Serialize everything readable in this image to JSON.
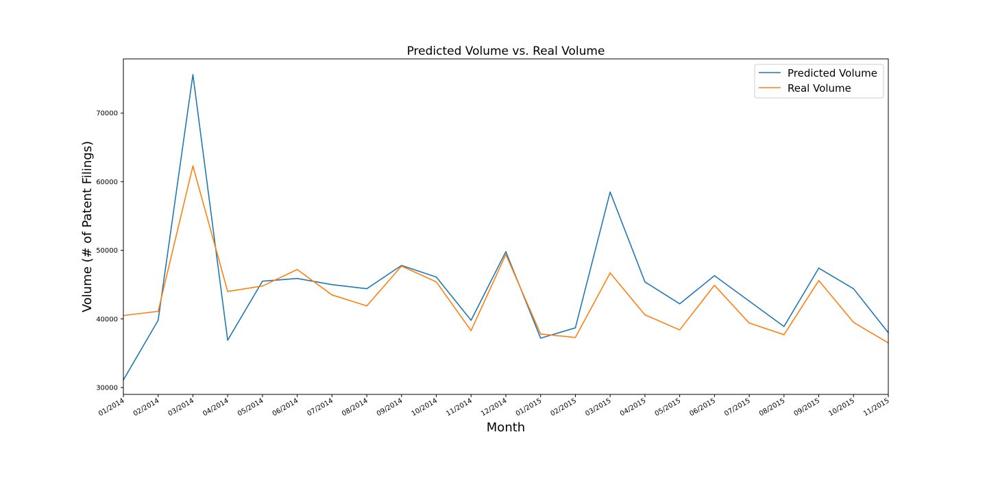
{
  "chart_data": {
    "type": "line",
    "title": "Predicted Volume vs. Real Volume",
    "xlabel": "Month",
    "ylabel": "Volume (# of Patent Filings)",
    "categories": [
      "01/2014",
      "02/2014",
      "03/2014",
      "04/2014",
      "05/2014",
      "06/2014",
      "07/2014",
      "08/2014",
      "09/2014",
      "10/2014",
      "11/2014",
      "12/2014",
      "01/2015",
      "02/2015",
      "03/2015",
      "04/2015",
      "05/2015",
      "06/2015",
      "07/2015",
      "08/2015",
      "09/2015",
      "10/2015",
      "11/2015"
    ],
    "ylim": [
      29000,
      77900
    ],
    "yticks": [
      30000,
      40000,
      50000,
      60000,
      70000
    ],
    "ytick_labels": [
      "30000",
      "40000",
      "50000",
      "60000",
      "70000"
    ],
    "series": [
      {
        "name": "Predicted Volume",
        "color": "#1f77b4",
        "values": [
          31100,
          39800,
          75600,
          36900,
          45500,
          45900,
          45000,
          44400,
          47800,
          46100,
          39800,
          49800,
          37200,
          38700,
          58500,
          45400,
          42200,
          46300,
          42600,
          38900,
          47400,
          44400,
          38000
        ]
      },
      {
        "name": "Real Volume",
        "color": "#ff7f0e",
        "values": [
          40500,
          41100,
          62300,
          44000,
          44800,
          47200,
          43500,
          41900,
          47700,
          45400,
          38300,
          49400,
          37800,
          37300,
          46700,
          40600,
          38400,
          44900,
          39400,
          37700,
          45600,
          39500,
          36500
        ]
      }
    ],
    "grid": false,
    "legend_position": "top-right"
  }
}
